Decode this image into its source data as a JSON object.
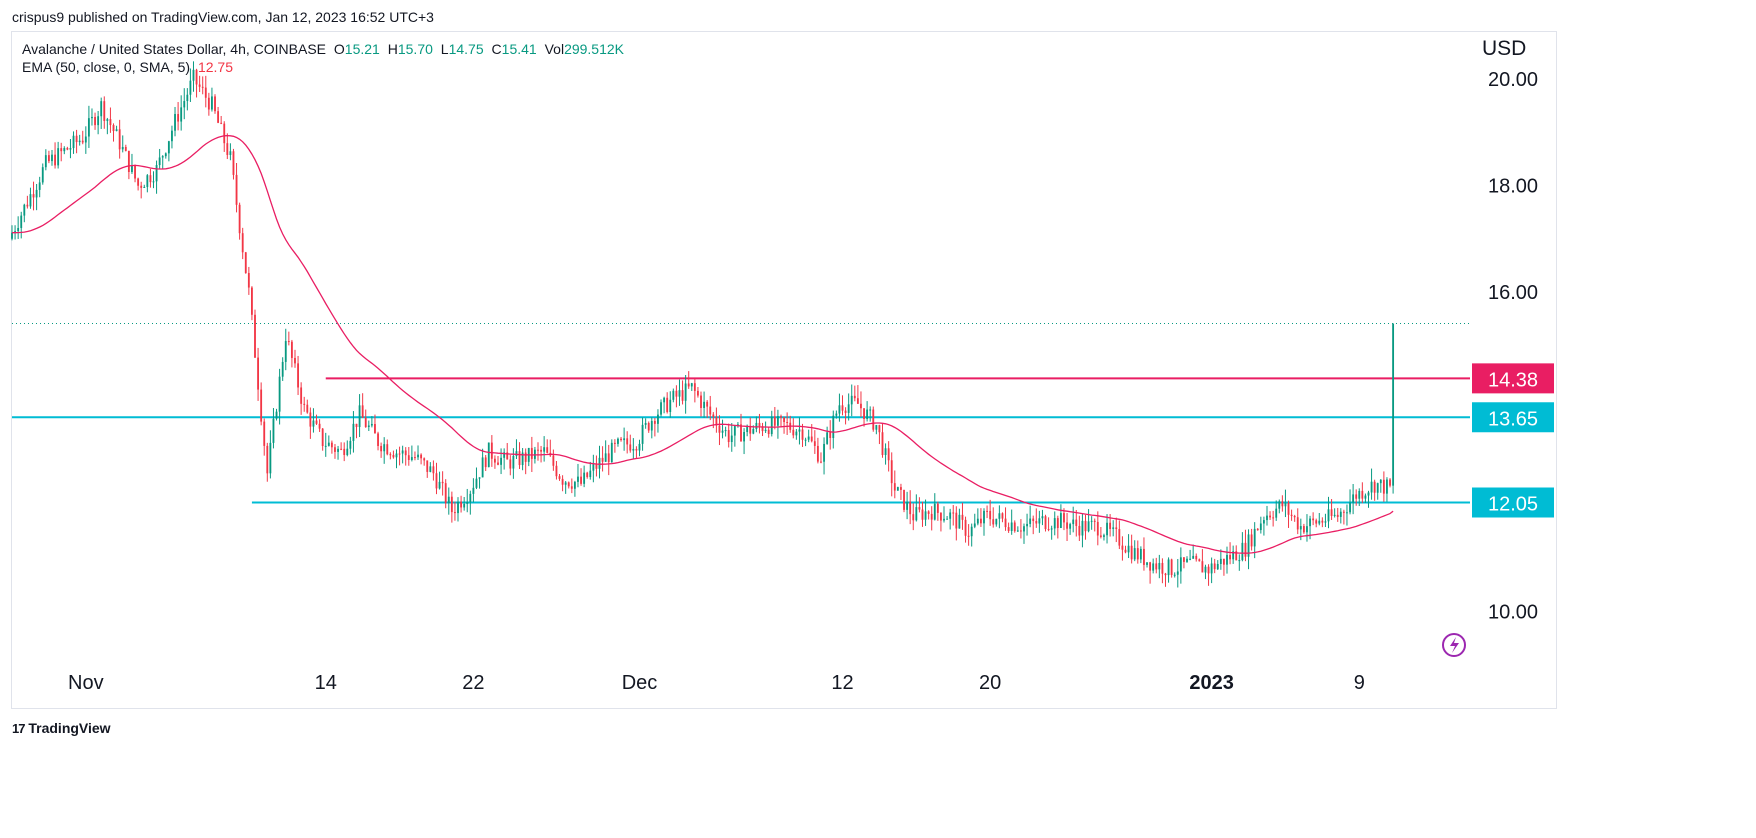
{
  "header": {
    "attribution": "crispus9 published on TradingView.com, Jan 12, 2023 16:52 UTC+3"
  },
  "legend": {
    "symbol": "Avalanche / United States Dollar, 4h, COINBASE",
    "open_label": "O",
    "open": "15.21",
    "high_label": "H",
    "high": "15.70",
    "low_label": "L",
    "low": "14.75",
    "close_label": "C",
    "close": "15.41",
    "vol_label": "Vol",
    "vol": "299.512K",
    "ema_label": "EMA (50, close, 0, SMA, 5)",
    "ema_value": "12.75"
  },
  "footer": {
    "brand": "TradingView",
    "brand_icon": "tradingview-logo-icon"
  },
  "colors": {
    "up": "#089981",
    "down": "#f23645",
    "ema": "#e91e63",
    "resistance": "#e91e63",
    "support": "#00bcd4",
    "last_price_line": "#089981"
  },
  "chart_data": {
    "type": "candlestick",
    "currency": "USD",
    "ylim": [
      9.0,
      20.9
    ],
    "y_ticks": [
      {
        "value": 10.0,
        "label": "10.00"
      },
      {
        "value": 16.0,
        "label": "16.00"
      },
      {
        "value": 18.0,
        "label": "18.00"
      },
      {
        "value": 20.0,
        "label": "20.00"
      }
    ],
    "x_ticks": [
      {
        "date": "2022-11-01",
        "label": "Nov",
        "bold": false
      },
      {
        "date": "2022-11-14",
        "label": "14",
        "bold": false
      },
      {
        "date": "2022-11-22",
        "label": "22",
        "bold": false
      },
      {
        "date": "2022-12-01",
        "label": "Dec",
        "bold": false
      },
      {
        "date": "2022-12-12",
        "label": "12",
        "bold": false
      },
      {
        "date": "2022-12-20",
        "label": "20",
        "bold": false
      },
      {
        "date": "2023-01-01",
        "label": "2023",
        "bold": true
      },
      {
        "date": "2023-01-09",
        "label": "9",
        "bold": false
      }
    ],
    "xlim": [
      "2022-10-28",
      "2023-01-15"
    ],
    "horizontal_levels": [
      {
        "value": 14.38,
        "label": "14.38",
        "color": "#e91e63",
        "from": "2022-11-14"
      },
      {
        "value": 13.65,
        "label": "13.65",
        "color": "#00bcd4",
        "from": "2022-10-28"
      },
      {
        "value": 12.05,
        "label": "12.05",
        "color": "#00bcd4",
        "from": "2022-11-10"
      }
    ],
    "last_price": 15.41,
    "price_path": [
      [
        "2022-10-28",
        17.0
      ],
      [
        "2022-10-30",
        18.4
      ],
      [
        "2022-11-01",
        18.9
      ],
      [
        "2022-11-02",
        19.5
      ],
      [
        "2022-11-03",
        18.8
      ],
      [
        "2022-11-04",
        18.0
      ],
      [
        "2022-11-05",
        18.3
      ],
      [
        "2022-11-06",
        19.2
      ],
      [
        "2022-11-07",
        20.0
      ],
      [
        "2022-11-08",
        19.5
      ],
      [
        "2022-11-09",
        18.5
      ],
      [
        "2022-11-10",
        16.0
      ],
      [
        "2022-11-11",
        12.6
      ],
      [
        "2022-11-12",
        15.2
      ],
      [
        "2022-11-13",
        13.8
      ],
      [
        "2022-11-14",
        13.2
      ],
      [
        "2022-11-15",
        13.0
      ],
      [
        "2022-11-16",
        13.7
      ],
      [
        "2022-11-17",
        13.2
      ],
      [
        "2022-11-18",
        13.0
      ],
      [
        "2022-11-19",
        12.9
      ],
      [
        "2022-11-20",
        12.6
      ],
      [
        "2022-11-21",
        11.9
      ],
      [
        "2022-11-22",
        12.3
      ],
      [
        "2022-11-23",
        13.0
      ],
      [
        "2022-11-24",
        12.8
      ],
      [
        "2022-11-25",
        12.9
      ],
      [
        "2022-11-26",
        13.0
      ],
      [
        "2022-11-27",
        12.5
      ],
      [
        "2022-11-28",
        12.4
      ],
      [
        "2022-11-29",
        12.8
      ],
      [
        "2022-11-30",
        13.1
      ],
      [
        "2022-12-01",
        13.2
      ],
      [
        "2022-12-02",
        13.7
      ],
      [
        "2022-12-03",
        14.0
      ],
      [
        "2022-12-04",
        14.2
      ],
      [
        "2022-12-05",
        13.7
      ],
      [
        "2022-12-06",
        13.3
      ],
      [
        "2022-12-07",
        13.4
      ],
      [
        "2022-12-08",
        13.5
      ],
      [
        "2022-12-09",
        13.5
      ],
      [
        "2022-12-10",
        13.4
      ],
      [
        "2022-12-11",
        12.9
      ],
      [
        "2022-12-12",
        13.9
      ],
      [
        "2022-12-13",
        13.9
      ],
      [
        "2022-12-14",
        13.5
      ],
      [
        "2022-12-15",
        12.3
      ],
      [
        "2022-12-16",
        11.8
      ],
      [
        "2022-12-17",
        11.9
      ],
      [
        "2022-12-18",
        11.8
      ],
      [
        "2022-12-19",
        11.5
      ],
      [
        "2022-12-20",
        11.8
      ],
      [
        "2022-12-21",
        11.7
      ],
      [
        "2022-12-22",
        11.6
      ],
      [
        "2022-12-23",
        11.7
      ],
      [
        "2022-12-24",
        11.7
      ],
      [
        "2022-12-25",
        11.6
      ],
      [
        "2022-12-26",
        11.6
      ],
      [
        "2022-12-27",
        11.4
      ],
      [
        "2022-12-28",
        11.1
      ],
      [
        "2022-12-29",
        10.9
      ],
      [
        "2022-12-30",
        10.8
      ],
      [
        "2022-12-31",
        10.9
      ],
      [
        "2023-01-01",
        10.8
      ],
      [
        "2023-01-02",
        11.0
      ],
      [
        "2023-01-03",
        11.2
      ],
      [
        "2023-01-04",
        11.8
      ],
      [
        "2023-01-05",
        12.0
      ],
      [
        "2023-01-06",
        11.6
      ],
      [
        "2023-01-07",
        11.7
      ],
      [
        "2023-01-08",
        11.8
      ],
      [
        "2023-01-09",
        12.2
      ],
      [
        "2023-01-10",
        12.4
      ],
      [
        "2023-01-11",
        12.3
      ],
      [
        "2023-01-11T08",
        15.9
      ],
      [
        "2023-01-12",
        15.41
      ]
    ]
  }
}
